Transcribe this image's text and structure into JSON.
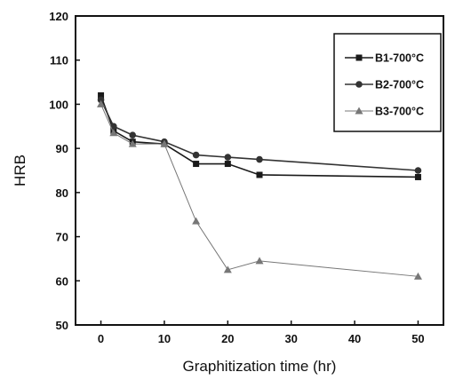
{
  "chart_data": {
    "type": "line",
    "xlabel": "Graphitization time (hr)",
    "ylabel": "HRB",
    "xlim": [
      -4,
      54
    ],
    "ylim": [
      50,
      120
    ],
    "xticks": [
      0,
      10,
      20,
      30,
      40,
      50
    ],
    "yticks": [
      50,
      60,
      70,
      80,
      90,
      100,
      110,
      120
    ],
    "grid": false,
    "legend_position": "top-right",
    "series": [
      {
        "name": "B1-700°C",
        "marker": "square",
        "color": "#1a1a1a",
        "x": [
          0,
          2,
          5,
          10,
          15,
          20,
          25,
          50
        ],
        "y": [
          102,
          94,
          91.5,
          91,
          86.5,
          86.5,
          84,
          83.5
        ]
      },
      {
        "name": "B2-700°C",
        "marker": "circle",
        "color": "#333333",
        "x": [
          0,
          2,
          5,
          10,
          15,
          20,
          25,
          50
        ],
        "y": [
          101,
          95,
          93,
          91.5,
          88.5,
          88,
          87.5,
          85
        ]
      },
      {
        "name": "B3-700°C",
        "marker": "triangle",
        "color": "#777777",
        "x": [
          0,
          2,
          5,
          10,
          15,
          20,
          25,
          50
        ],
        "y": [
          100,
          93.5,
          91,
          91,
          73.5,
          62.5,
          64.5,
          61
        ]
      }
    ]
  }
}
